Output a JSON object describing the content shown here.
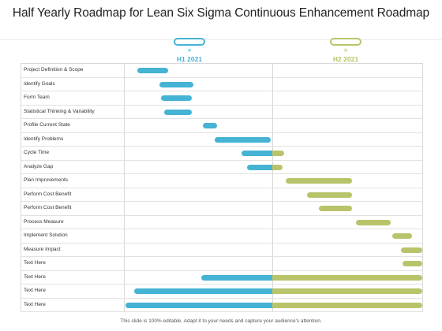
{
  "title": "Half Yearly Roadmap for Lean Six Sigma Continuous Enhancement Roadmap",
  "colors": {
    "h1": "#45b3d3",
    "h2": "#b9c46a"
  },
  "periods": [
    {
      "label": "H1 2021",
      "chevron": "»"
    },
    {
      "label": "H2 2021",
      "chevron": "»"
    }
  ],
  "rows": [
    {
      "label": "Project Definition & Scope",
      "h1": [
        0.09,
        0.3
      ],
      "h2": null
    },
    {
      "label": "Identify Goals",
      "h1": [
        0.24,
        0.47
      ],
      "h2": null
    },
    {
      "label": "Form Team",
      "h1": [
        0.25,
        0.46
      ],
      "h2": null
    },
    {
      "label": "Statistical Thinking & Variability",
      "h1": [
        0.27,
        0.46
      ],
      "h2": null
    },
    {
      "label": "Profile Current State",
      "h1": [
        0.53,
        0.63
      ],
      "h2": null
    },
    {
      "label": "Identify Problems",
      "h1": [
        0.61,
        0.99
      ],
      "h2": null
    },
    {
      "label": "Cycle Time",
      "h1": [
        0.79,
        1.0
      ],
      "h2": [
        0.0,
        0.08
      ]
    },
    {
      "label": "Analyze Gap",
      "h1": [
        0.83,
        1.0
      ],
      "h2": [
        0.0,
        0.07
      ]
    },
    {
      "label": "Plan Improvements",
      "h1": null,
      "h2": [
        0.09,
        0.53
      ]
    },
    {
      "label": "Perform Cost Benefit",
      "h1": null,
      "h2": [
        0.23,
        0.53
      ]
    },
    {
      "label": "Perform Cost Benefit",
      "h1": null,
      "h2": [
        0.31,
        0.53
      ]
    },
    {
      "label": "Process Measure",
      "h1": null,
      "h2": [
        0.56,
        0.79
      ]
    },
    {
      "label": "Implement Solution",
      "h1": null,
      "h2": [
        0.8,
        0.93
      ]
    },
    {
      "label": "Measure Impact",
      "h1": null,
      "h2": [
        0.86,
        1.0
      ]
    },
    {
      "label": "Text Here",
      "h1": null,
      "h2": [
        0.87,
        1.0
      ]
    },
    {
      "label": "Text Here",
      "h1": [
        0.52,
        1.0
      ],
      "h2": [
        0.0,
        1.0
      ]
    },
    {
      "label": "Text Here",
      "h1": [
        0.07,
        1.0
      ],
      "h2": [
        0.0,
        1.0
      ]
    },
    {
      "label": "Text Here",
      "h1": [
        0.01,
        1.0
      ],
      "h2": [
        0.0,
        1.0
      ]
    }
  ],
  "footer": "This slide is 100% editable. Adapt it to your needs and capture your audience's attention."
}
